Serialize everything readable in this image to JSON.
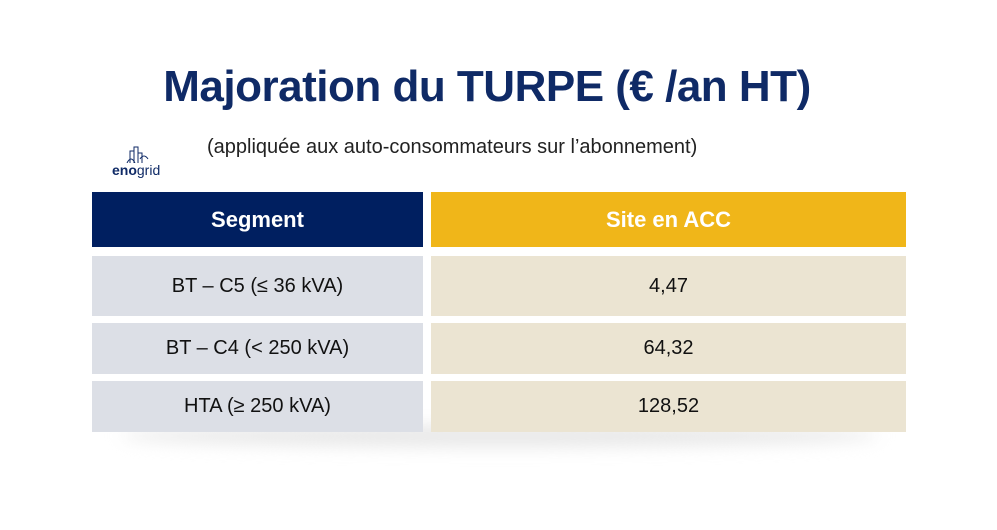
{
  "title": "Majoration du TURPE (€ /an HT)",
  "subtitle": "(appliquée aux auto-consommateurs sur l’abonnement)",
  "logo": {
    "text_bold": "eno",
    "text_light": "grid"
  },
  "table": {
    "headers": [
      "Segment",
      "Site en ACC"
    ],
    "rows": [
      {
        "segment": "BT – C5 (≤ 36 kVA)",
        "value": "4,47"
      },
      {
        "segment": "BT – C4 (< 250 kVA)",
        "value": "64,32"
      },
      {
        "segment": "HTA (≥ 250 kVA)",
        "value": "128,52"
      }
    ]
  },
  "colors": {
    "navy": "#001f60",
    "gold": "#f0b619",
    "row_left": "#dcdfe6",
    "row_right": "#ebe4d2"
  }
}
